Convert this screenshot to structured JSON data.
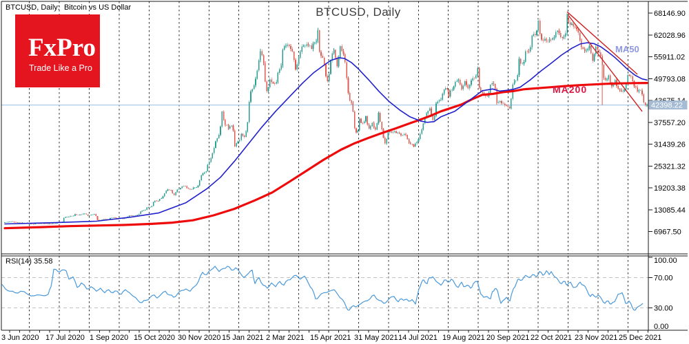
{
  "window": {
    "left_title": "BTCUSD, Daily:  Bitcoin vs US Dollar",
    "watermark_title": "BTCUSD, Daily"
  },
  "logo": {
    "brand": "FxPro",
    "tagline": "Trade Like a Pro",
    "bg_color": "#e4151f"
  },
  "indicators": {
    "ma_fast_label": "MA50",
    "ma_slow_label": "MA200",
    "rsi_label": "RSI(14) 35.58"
  },
  "chart_data": {
    "type": "candlestick",
    "symbol": "BTCUSD",
    "timeframe": "Daily",
    "description": "Bitcoin vs US Dollar",
    "price_ticks": [
      68146.9,
      62028.96,
      55911.02,
      49793.08,
      43675.14,
      37557.2,
      31439.26,
      25321.32,
      19203.38,
      13085.44,
      6967.5
    ],
    "current_price": 42398.22,
    "date_labels": [
      "3 Jun 2020",
      "17 Jul 2020",
      "1 Sep 2020",
      "15 Oct 2020",
      "30 Nov 2020",
      "15 Jan 2021",
      "2 Mar 2021",
      "15 Apr 2021",
      "31 May 2021",
      "14 Jul 2021",
      "19 Aug 2021",
      "20 Sep 2021",
      "22 Oct 2021",
      "23 Nov 2021",
      "25 Dec 2021"
    ],
    "closes": [
      9550,
      9670,
      9780,
      9620,
      9450,
      9300,
      9380,
      9250,
      9160,
      9080,
      9250,
      9150,
      9220,
      9170,
      9150,
      9200,
      9280,
      9550,
      9700,
      11050,
      11100,
      11350,
      11800,
      11600,
      11750,
      11950,
      11400,
      11650,
      11900,
      10250,
      10150,
      10450,
      10350,
      10700,
      10950,
      10450,
      10700,
      10550,
      10800,
      11450,
      11420,
      11500,
      11900,
      12800,
      13050,
      13800,
      14100,
      15600,
      15500,
      16300,
      17650,
      18700,
      18400,
      17150,
      18750,
      19150,
      19700,
      19150,
      18800,
      19250,
      19400,
      21300,
      23200,
      23800,
      26500,
      28900,
      32200,
      34000,
      40600,
      36800,
      35800,
      36600,
      30800,
      32200,
      34300,
      33500,
      37600,
      46200,
      47900,
      52100,
      57500,
      54100,
      46300,
      49600,
      48500,
      48900,
      52400,
      57800,
      59000,
      58900,
      57400,
      52300,
      55800,
      58800,
      59000,
      59100,
      58100,
      60000,
      63300,
      56200,
      53800,
      49100,
      54900,
      57800,
      53200,
      58900,
      56700,
      49900,
      43600,
      40600,
      34700,
      38600,
      37300,
      39200,
      35800,
      37400,
      35500,
      40200,
      35600,
      31600,
      34700,
      34700,
      35000,
      34700,
      33900,
      34250,
      32800,
      31400,
      30800,
      32100,
      34300,
      37200,
      40000,
      41500,
      38200,
      42800,
      43800,
      45600,
      47100,
      44700,
      46760,
      48900,
      49500,
      46900,
      49100,
      47000,
      49300,
      49900,
      52700,
      46100,
      45200,
      44900,
      48100,
      48300,
      43000,
      43500,
      42800,
      42200,
      41500,
      48200,
      49300,
      55300,
      54000,
      57500,
      57400,
      61700,
      62000,
      66000,
      60700,
      60900,
      60300,
      60600,
      61300,
      63200,
      61400,
      61500,
      67600,
      64900,
      64400,
      63600,
      60400,
      58100,
      57600,
      59000,
      54800,
      58800,
      57200,
      53600,
      49400,
      50700,
      47600,
      49400,
      46900,
      46200,
      46900,
      50800,
      50400,
      47600,
      46200,
      46500,
      43100,
      42398
    ],
    "ma50_points": [
      [
        7,
        9080
      ],
      [
        80,
        9460
      ],
      [
        140,
        9850
      ],
      [
        190,
        11000
      ],
      [
        230,
        12150
      ],
      [
        270,
        15040
      ],
      [
        300,
        18890
      ],
      [
        320,
        22160
      ],
      [
        340,
        26590
      ],
      [
        360,
        31390
      ],
      [
        380,
        36200
      ],
      [
        400,
        40630
      ],
      [
        420,
        44670
      ],
      [
        440,
        48710
      ],
      [
        455,
        51400
      ],
      [
        470,
        53520
      ],
      [
        480,
        54870
      ],
      [
        492,
        55640
      ],
      [
        500,
        55440
      ],
      [
        510,
        54290
      ],
      [
        520,
        52560
      ],
      [
        535,
        49480
      ],
      [
        550,
        46210
      ],
      [
        565,
        43320
      ],
      [
        580,
        41010
      ],
      [
        595,
        39090
      ],
      [
        610,
        37930
      ],
      [
        620,
        37550
      ],
      [
        630,
        37740
      ],
      [
        640,
        39100
      ],
      [
        660,
        40640
      ],
      [
        680,
        43500
      ],
      [
        700,
        46400
      ],
      [
        715,
        46900
      ],
      [
        725,
        46300
      ],
      [
        735,
        46500
      ],
      [
        745,
        46800
      ],
      [
        755,
        47400
      ],
      [
        770,
        49500
      ],
      [
        785,
        51900
      ],
      [
        800,
        54100
      ],
      [
        815,
        56400
      ],
      [
        830,
        58300
      ],
      [
        842,
        59500
      ],
      [
        852,
        59850
      ],
      [
        862,
        59600
      ],
      [
        872,
        58700
      ],
      [
        882,
        57300
      ],
      [
        892,
        55800
      ],
      [
        902,
        54000
      ],
      [
        912,
        52200
      ],
      [
        922,
        50700
      ],
      [
        932,
        49700
      ],
      [
        939,
        49400
      ]
    ],
    "ma200_points": [
      [
        7,
        7900
      ],
      [
        60,
        8200
      ],
      [
        100,
        8480
      ],
      [
        140,
        8650
      ],
      [
        180,
        8800
      ],
      [
        220,
        9100
      ],
      [
        250,
        9450
      ],
      [
        280,
        10100
      ],
      [
        310,
        11500
      ],
      [
        340,
        13300
      ],
      [
        370,
        15700
      ],
      [
        395,
        17900
      ],
      [
        420,
        20900
      ],
      [
        445,
        24000
      ],
      [
        470,
        27100
      ],
      [
        495,
        29900
      ],
      [
        515,
        31700
      ],
      [
        535,
        33200
      ],
      [
        555,
        34600
      ],
      [
        575,
        35900
      ],
      [
        595,
        37300
      ],
      [
        610,
        38300
      ],
      [
        625,
        39400
      ],
      [
        640,
        40640
      ],
      [
        655,
        41600
      ],
      [
        670,
        42550
      ],
      [
        685,
        44000
      ],
      [
        700,
        45250
      ],
      [
        715,
        45500
      ],
      [
        730,
        46000
      ],
      [
        745,
        46300
      ],
      [
        760,
        46800
      ],
      [
        780,
        47100
      ],
      [
        800,
        47400
      ],
      [
        820,
        47700
      ],
      [
        840,
        47950
      ],
      [
        860,
        48150
      ],
      [
        880,
        48340
      ],
      [
        900,
        48450
      ],
      [
        920,
        48530
      ],
      [
        939,
        48560
      ]
    ],
    "rsi": {
      "period": 14,
      "current": 35.58,
      "levels": [
        100,
        70,
        30,
        0
      ],
      "points": [
        [
          3,
          61
        ],
        [
          8,
          55
        ],
        [
          14,
          52
        ],
        [
          22,
          50
        ],
        [
          30,
          52
        ],
        [
          40,
          48
        ],
        [
          50,
          46
        ],
        [
          58,
          47
        ],
        [
          64,
          46
        ],
        [
          70,
          48
        ],
        [
          74,
          58
        ],
        [
          78,
          81
        ],
        [
          84,
          78
        ],
        [
          90,
          80
        ],
        [
          96,
          79
        ],
        [
          100,
          68
        ],
        [
          106,
          71
        ],
        [
          112,
          57
        ],
        [
          118,
          63
        ],
        [
          126,
          55
        ],
        [
          132,
          58
        ],
        [
          140,
          52
        ],
        [
          146,
          56
        ],
        [
          152,
          50
        ],
        [
          158,
          54
        ],
        [
          164,
          50
        ],
        [
          170,
          52
        ],
        [
          176,
          48
        ],
        [
          182,
          54
        ],
        [
          188,
          50
        ],
        [
          194,
          45
        ],
        [
          200,
          40
        ],
        [
          206,
          37
        ],
        [
          212,
          40
        ],
        [
          218,
          44
        ],
        [
          224,
          47
        ],
        [
          228,
          43
        ],
        [
          234,
          48
        ],
        [
          240,
          52
        ],
        [
          246,
          47
        ],
        [
          252,
          44
        ],
        [
          258,
          49
        ],
        [
          264,
          53
        ],
        [
          270,
          55
        ],
        [
          276,
          52
        ],
        [
          282,
          58
        ],
        [
          288,
          65
        ],
        [
          294,
          77
        ],
        [
          300,
          74
        ],
        [
          306,
          80
        ],
        [
          312,
          85
        ],
        [
          318,
          78
        ],
        [
          324,
          82
        ],
        [
          330,
          85
        ],
        [
          336,
          80
        ],
        [
          342,
          83
        ],
        [
          348,
          77
        ],
        [
          354,
          70
        ],
        [
          360,
          75
        ],
        [
          366,
          80
        ],
        [
          370,
          62
        ],
        [
          376,
          70
        ],
        [
          382,
          60
        ],
        [
          388,
          56
        ],
        [
          394,
          63
        ],
        [
          400,
          58
        ],
        [
          406,
          65
        ],
        [
          412,
          60
        ],
        [
          418,
          67
        ],
        [
          424,
          70
        ],
        [
          430,
          73
        ],
        [
          436,
          68
        ],
        [
          442,
          72
        ],
        [
          448,
          62
        ],
        [
          453,
          55
        ],
        [
          458,
          42
        ],
        [
          463,
          45
        ],
        [
          470,
          50
        ],
        [
          478,
          52
        ],
        [
          485,
          54
        ],
        [
          490,
          48
        ],
        [
          497,
          41
        ],
        [
          503,
          30
        ],
        [
          507,
          27
        ],
        [
          513,
          33
        ],
        [
          518,
          32
        ],
        [
          523,
          35
        ],
        [
          530,
          39
        ],
        [
          537,
          42
        ],
        [
          543,
          47
        ],
        [
          550,
          40
        ],
        [
          557,
          36
        ],
        [
          562,
          39
        ],
        [
          567,
          44
        ],
        [
          572,
          45
        ],
        [
          578,
          38
        ],
        [
          583,
          42
        ],
        [
          588,
          41
        ],
        [
          593,
          39
        ],
        [
          598,
          41
        ],
        [
          603,
          35
        ],
        [
          608,
          55
        ],
        [
          612,
          64
        ],
        [
          615,
          67
        ],
        [
          620,
          62
        ],
        [
          623,
          70
        ],
        [
          628,
          71
        ],
        [
          633,
          65
        ],
        [
          640,
          60
        ],
        [
          645,
          67
        ],
        [
          650,
          64
        ],
        [
          655,
          68
        ],
        [
          660,
          62
        ],
        [
          665,
          57
        ],
        [
          670,
          64
        ],
        [
          673,
          58
        ],
        [
          678,
          60
        ],
        [
          683,
          56
        ],
        [
          687,
          62
        ],
        [
          693,
          65
        ],
        [
          698,
          48
        ],
        [
          702,
          44
        ],
        [
          707,
          45
        ],
        [
          712,
          42
        ],
        [
          715,
          52
        ],
        [
          718,
          55
        ],
        [
          722,
          53
        ],
        [
          727,
          36
        ],
        [
          732,
          41
        ],
        [
          735,
          44
        ],
        [
          740,
          39
        ],
        [
          745,
          55
        ],
        [
          750,
          64
        ],
        [
          753,
          68
        ],
        [
          758,
          67
        ],
        [
          763,
          73
        ],
        [
          768,
          70
        ],
        [
          773,
          74
        ],
        [
          778,
          71
        ],
        [
          783,
          78
        ],
        [
          788,
          73
        ],
        [
          793,
          79
        ],
        [
          797,
          74
        ],
        [
          800,
          78
        ],
        [
          805,
          71
        ],
        [
          810,
          67
        ],
        [
          815,
          62
        ],
        [
          820,
          65
        ],
        [
          823,
          60
        ],
        [
          828,
          64
        ],
        [
          832,
          57
        ],
        [
          837,
          58
        ],
        [
          842,
          64
        ],
        [
          847,
          60
        ],
        [
          852,
          53
        ],
        [
          857,
          45
        ],
        [
          860,
          48
        ],
        [
          865,
          44
        ],
        [
          868,
          47
        ],
        [
          873,
          42
        ],
        [
          878,
          36
        ],
        [
          883,
          39
        ],
        [
          887,
          35
        ],
        [
          892,
          38
        ],
        [
          897,
          48
        ],
        [
          903,
          50
        ],
        [
          908,
          36
        ],
        [
          913,
          39
        ],
        [
          918,
          30
        ],
        [
          922,
          27
        ],
        [
          927,
          32
        ],
        [
          933,
          36
        ]
      ]
    },
    "trendlines": [
      {
        "from_index": 176,
        "from_price": 68500,
        "to_index": 198,
        "to_price": 51000
      },
      {
        "from_index": 176.5,
        "from_price": 67400,
        "to_index": 199.5,
        "to_price": 40600
      }
    ],
    "crash_wick": {
      "index": 187,
      "from_price": 53600,
      "low_price": 42350
    },
    "axis": {
      "price_top": 68146.9,
      "price_top_y": 19,
      "price_bottom": 6967.5,
      "price_bottom_y": 336.5
    },
    "colors": {
      "up": "#2b9f92",
      "down": "#e15a52",
      "ma50": "#2121cb",
      "ma200": "#ee0a0a",
      "rsi": "#4a99da",
      "bid_line": "#aacbe8",
      "price_tag_bg": "#a6bcd4",
      "trendline": "#cf2020",
      "grid": "#2c2c2c",
      "rsi_level": "#c0c0c0",
      "border": "#1a1a1a"
    }
  }
}
